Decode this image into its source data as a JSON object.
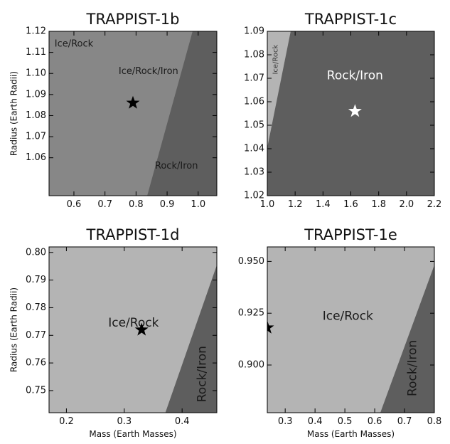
{
  "figure": {
    "background": "#ffffff"
  },
  "colors": {
    "light": "#b4b4b4",
    "mid": "#878787",
    "dark": "#5e5e5e",
    "star_dark": "#000000",
    "star_light": "#ffffff"
  },
  "chart_data": [
    {
      "type": "heatmap",
      "title": "TRAPPIST-1b",
      "xlabel": "",
      "ylabel": "Radius (Earth Radii)",
      "xlim": [
        0.52,
        1.06
      ],
      "ylim": [
        1.042,
        1.12
      ],
      "xticks": [
        0.6,
        0.7,
        0.8,
        0.9,
        1.0
      ],
      "xtick_labels": [
        "0.6",
        "0.7",
        "0.8",
        "0.9",
        "1.0"
      ],
      "yticks": [
        1.06,
        1.07,
        1.08,
        1.09,
        1.1,
        1.11,
        1.12
      ],
      "ytick_labels": [
        "1.06",
        "1.07",
        "1.08",
        "1.09",
        "1.10",
        "1.11",
        "1.12"
      ],
      "background_region": "dark",
      "regions": [
        {
          "name": "Ice/Rock",
          "shade": "light",
          "boundary": [
            [
              0.612,
              1.042
            ],
            [
              0.694,
              1.12
            ]
          ]
        },
        {
          "name": "Ice/Rock/Iron",
          "shade": "mid",
          "boundary": [
            [
              0.836,
              1.042
            ],
            [
              0.982,
              1.12
            ]
          ]
        }
      ],
      "region_labels": [
        {
          "text": "Ice/Rock",
          "x": 0.6,
          "y": 1.114,
          "size": 13,
          "color": "#1a1a1a",
          "rotate": 0
        },
        {
          "text": "Ice/Rock/Iron",
          "x": 0.84,
          "y": 1.101,
          "size": 13,
          "color": "#1a1a1a",
          "rotate": 0
        },
        {
          "text": "Rock/Iron",
          "x": 0.93,
          "y": 1.056,
          "size": 13,
          "color": "#1a1a1a",
          "rotate": 0
        }
      ],
      "star": {
        "x": 0.79,
        "y": 1.086,
        "color": "star_dark"
      }
    },
    {
      "type": "heatmap",
      "title": "TRAPPIST-1c",
      "xlabel": "",
      "ylabel": "",
      "xlim": [
        1.0,
        2.2
      ],
      "ylim": [
        1.02,
        1.09
      ],
      "xticks": [
        1.0,
        1.2,
        1.4,
        1.6,
        1.8,
        2.0,
        2.2
      ],
      "xtick_labels": [
        "1.0",
        "1.2",
        "1.4",
        "1.6",
        "1.8",
        "2.0",
        "2.2"
      ],
      "yticks": [
        1.02,
        1.03,
        1.04,
        1.05,
        1.06,
        1.07,
        1.08,
        1.09
      ],
      "ytick_labels": [
        "1.02",
        "1.03",
        "1.04",
        "1.05",
        "1.06",
        "1.07",
        "1.08",
        "1.09"
      ],
      "background_region": "dark",
      "regions": [
        {
          "name": "Ice/Rock",
          "shade": "light",
          "boundary": [
            [
              1.0,
              1.0405
            ],
            [
              1.168,
              1.09
            ]
          ]
        }
      ],
      "region_labels": [
        {
          "text": "Ice/Rock",
          "x": 1.058,
          "y": 1.078,
          "size": 10,
          "color": "#3a3a3a",
          "rotate": -90
        },
        {
          "text": "Rock/Iron",
          "x": 1.63,
          "y": 1.071,
          "size": 17,
          "color": "#ffffff",
          "rotate": 0
        }
      ],
      "star": {
        "x": 1.63,
        "y": 1.056,
        "color": "star_light"
      }
    },
    {
      "type": "heatmap",
      "title": "TRAPPIST-1d",
      "xlabel": "Mass (Earth Masses)",
      "ylabel": "Radius (Earth Radii)",
      "xlim": [
        0.17,
        0.46
      ],
      "ylim": [
        0.742,
        0.802
      ],
      "xticks": [
        0.2,
        0.3,
        0.4
      ],
      "xtick_labels": [
        "0.2",
        "0.3",
        "0.4"
      ],
      "yticks": [
        0.75,
        0.76,
        0.77,
        0.78,
        0.79,
        0.8
      ],
      "ytick_labels": [
        "0.75",
        "0.76",
        "0.77",
        "0.78",
        "0.79",
        "0.80"
      ],
      "background_region": "dark",
      "regions": [
        {
          "name": "Ice/Rock",
          "shade": "light",
          "boundary": [
            [
              0.371,
              0.742
            ],
            [
              0.461,
              0.796
            ]
          ]
        }
      ],
      "region_labels": [
        {
          "text": "Ice/Rock",
          "x": 0.316,
          "y": 0.7745,
          "size": 17,
          "color": "#1a1a1a",
          "rotate": 0
        },
        {
          "text": "Rock/Iron",
          "x": 0.435,
          "y": 0.756,
          "size": 17,
          "color": "#1a1a1a",
          "rotate": -90
        }
      ],
      "star": {
        "x": 0.33,
        "y": 0.772,
        "color": "star_dark"
      }
    },
    {
      "type": "heatmap",
      "title": "TRAPPIST-1e",
      "xlabel": "Mass (Earth Masses)",
      "ylabel": "",
      "xlim": [
        0.24,
        0.8
      ],
      "ylim": [
        0.877,
        0.957
      ],
      "xticks": [
        0.3,
        0.4,
        0.5,
        0.6,
        0.7,
        0.8
      ],
      "xtick_labels": [
        "0.3",
        "0.4",
        "0.5",
        "0.6",
        "0.7",
        "0.8"
      ],
      "yticks": [
        0.9,
        0.925,
        0.95
      ],
      "ytick_labels": [
        "0.900",
        "0.925",
        "0.950"
      ],
      "background_region": "dark",
      "regions": [
        {
          "name": "Ice/Rock",
          "shade": "light",
          "boundary": [
            [
              0.619,
              0.877
            ],
            [
              0.802,
              0.949
            ]
          ]
        }
      ],
      "region_labels": [
        {
          "text": "Ice/Rock",
          "x": 0.51,
          "y": 0.9236,
          "size": 17,
          "color": "#1a1a1a",
          "rotate": 0
        },
        {
          "text": "Rock/Iron",
          "x": 0.727,
          "y": 0.8985,
          "size": 17,
          "color": "#1a1a1a",
          "rotate": -90
        }
      ],
      "star": {
        "x": 0.24,
        "y": 0.918,
        "color": "star_dark"
      }
    }
  ]
}
